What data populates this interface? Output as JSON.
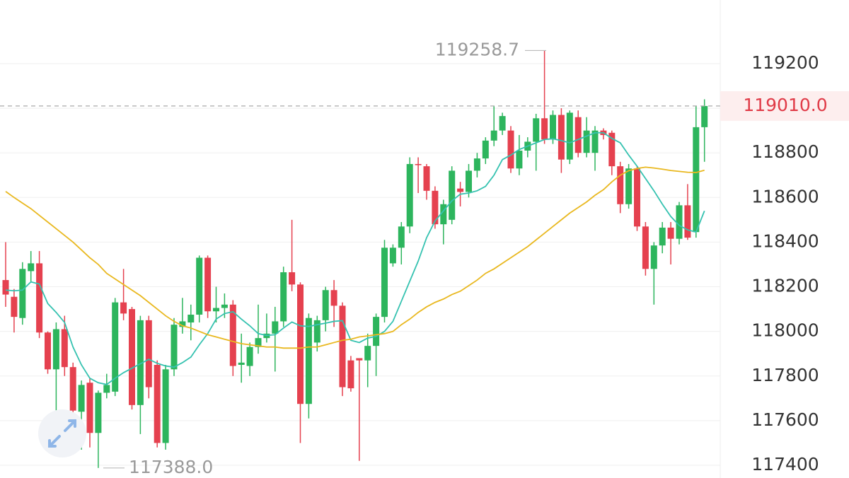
{
  "chart_data": {
    "type": "candlestick",
    "categories": [
      null,
      null,
      null,
      null,
      null,
      null,
      null,
      null,
      null,
      null,
      null,
      null,
      null,
      null,
      null,
      null,
      null,
      null,
      null,
      null,
      null,
      null,
      null,
      null,
      null,
      null,
      null,
      null,
      null,
      null,
      null,
      null,
      null,
      null,
      null,
      null,
      null,
      null,
      null,
      null,
      null,
      null,
      null,
      null,
      null,
      null,
      null,
      null,
      null,
      null,
      null,
      null,
      null,
      null,
      null,
      null,
      null,
      null,
      null,
      null,
      null,
      null,
      null,
      null,
      null,
      null,
      null,
      null,
      null,
      null,
      null,
      null,
      null,
      null,
      null,
      null,
      null,
      null,
      null,
      null,
      null,
      null,
      null,
      null
    ],
    "open": [
      118230,
      118155,
      118060,
      118270,
      118305,
      117995,
      117830,
      118010,
      117840,
      117640,
      117770,
      117545,
      117725,
      117730,
      118130,
      118100,
      117670,
      118050,
      117850,
      117500,
      117830,
      118020,
      118040,
      118075,
      118330,
      118090,
      118105,
      118120,
      117850,
      117845,
      117930,
      117970,
      117990,
      118045,
      118265,
      118210,
      117675,
      117950,
      118050,
      118185,
      118115,
      117870,
      117880,
      117870,
      117935,
      118065,
      118305,
      118375,
      118470,
      118750,
      118740,
      118630,
      118480,
      118500,
      118640,
      118625,
      118720,
      118775,
      118855,
      118900,
      118900,
      118730,
      118810,
      118850,
      118955,
      118860,
      118970,
      118770,
      118960,
      118800,
      118800,
      118900,
      118890,
      118740,
      118570,
      118730,
      118470,
      118280,
      118385,
      118465,
      118415,
      118565,
      118445,
      118915
    ],
    "high": [
      118400,
      118190,
      118310,
      118360,
      118360,
      118000,
      118040,
      118070,
      117860,
      117780,
      117790,
      117735,
      117810,
      118150,
      118280,
      118110,
      118070,
      118070,
      117870,
      117850,
      118060,
      118150,
      118120,
      118340,
      118340,
      118200,
      118170,
      118140,
      117990,
      117950,
      118120,
      118080,
      118110,
      118290,
      118500,
      118220,
      118080,
      118070,
      118200,
      118230,
      118130,
      117890,
      117880,
      117990,
      118080,
      118410,
      118390,
      118490,
      118780,
      118780,
      118750,
      118650,
      118590,
      118740,
      118670,
      118750,
      118800,
      118870,
      119010,
      118980,
      118920,
      118880,
      118870,
      118975,
      119258.7,
      118990,
      119000,
      118990,
      118990,
      118960,
      118920,
      118910,
      118900,
      118760,
      118750,
      118740,
      118490,
      118400,
      118490,
      118490,
      118580,
      118660,
      119010,
      119040
    ],
    "low": [
      118110,
      117995,
      118030,
      118220,
      117970,
      117810,
      117610,
      117800,
      117620,
      117470,
      117480,
      117388,
      117700,
      117710,
      118050,
      117650,
      117540,
      117700,
      117480,
      117470,
      117800,
      117990,
      117960,
      118040,
      118060,
      118040,
      118060,
      117800,
      117770,
      117800,
      117900,
      117950,
      117820,
      118020,
      118180,
      117500,
      117610,
      117910,
      118000,
      118020,
      117710,
      117730,
      117420,
      117750,
      117800,
      118040,
      118290,
      118300,
      118440,
      118620,
      118590,
      118460,
      118390,
      118480,
      118560,
      118600,
      118690,
      118750,
      118830,
      118880,
      118710,
      118700,
      118780,
      118720,
      118840,
      118840,
      118710,
      118750,
      118780,
      118780,
      118720,
      118860,
      118700,
      118530,
      118550,
      118450,
      118250,
      118120,
      118350,
      118300,
      118390,
      118410,
      118420,
      118760
    ],
    "close": [
      118165,
      118065,
      118280,
      118305,
      117995,
      117830,
      118010,
      117840,
      117645,
      117760,
      117545,
      117725,
      117760,
      118130,
      118080,
      117670,
      118050,
      117750,
      117500,
      117830,
      118030,
      118045,
      118075,
      118330,
      118090,
      118105,
      118120,
      117845,
      117860,
      117930,
      117970,
      117990,
      118045,
      118265,
      118210,
      117675,
      118060,
      118050,
      118185,
      118115,
      117750,
      117745,
      117870,
      117935,
      118065,
      118375,
      118375,
      118470,
      118750,
      118745,
      118630,
      118480,
      118570,
      118720,
      118625,
      118720,
      118775,
      118855,
      118900,
      118965,
      118730,
      118810,
      118850,
      118955,
      118860,
      118970,
      118770,
      118980,
      118800,
      118900,
      118900,
      118880,
      118740,
      118570,
      118730,
      118470,
      118280,
      118385,
      118465,
      118415,
      118565,
      118420,
      118915,
      119010
    ],
    "up_color": "#2db55d",
    "down_color": "#e5414f",
    "ma_lines": [
      {
        "color": "#35c2b0",
        "values": [
          118185,
          118182,
          118185,
          118222,
          118212,
          118125,
          118085,
          118040,
          117930,
          117850,
          117790,
          117770,
          117762,
          117790,
          117815,
          117835,
          117855,
          117875,
          117857,
          117845,
          117840,
          117860,
          117885,
          117940,
          117990,
          118055,
          118080,
          118088,
          118055,
          118025,
          117990,
          117982,
          117985,
          118015,
          118042,
          118025,
          118022,
          118030,
          118037,
          118045,
          118048,
          117960,
          117950,
          117970,
          117978,
          118000,
          118045,
          118135,
          118225,
          118315,
          118420,
          118495,
          118540,
          118585,
          118615,
          118620,
          118630,
          118650,
          118700,
          118770,
          118790,
          118815,
          118830,
          118845,
          118860,
          118863,
          118855,
          118845,
          118860,
          118875,
          118890,
          118890,
          118865,
          118845,
          118790,
          118740,
          118685,
          118630,
          118570,
          118515,
          118475,
          118455,
          118445,
          118540
        ]
      },
      {
        "color": "#e9b81f",
        "values": [
          118627,
          118600,
          118575,
          118550,
          118520,
          118490,
          118460,
          118430,
          118400,
          118365,
          118330,
          118300,
          118260,
          118235,
          118210,
          118185,
          118160,
          118130,
          118100,
          118070,
          118045,
          118025,
          118015,
          118000,
          117985,
          117975,
          117965,
          117955,
          117945,
          117940,
          117935,
          117930,
          117930,
          117925,
          117925,
          117925,
          117930,
          117930,
          117940,
          117950,
          117960,
          117965,
          117975,
          117980,
          117985,
          117990,
          118000,
          118030,
          118055,
          118085,
          118110,
          118130,
          118145,
          118165,
          118180,
          118205,
          118230,
          118260,
          118280,
          118305,
          118330,
          118355,
          118380,
          118410,
          118440,
          118470,
          118500,
          118530,
          118555,
          118580,
          118610,
          118635,
          118670,
          118700,
          118720,
          118730,
          118736,
          118732,
          118727,
          118721,
          118717,
          118713,
          118712,
          118722
        ]
      }
    ],
    "ylim": [
      117343,
      119485
    ],
    "yticks": [
      117400,
      117600,
      117800,
      118000,
      118200,
      118400,
      118600,
      118800,
      119000,
      119200
    ],
    "grid": true,
    "last_price": {
      "value": 119010,
      "label": "119010.0"
    },
    "annotations": [
      {
        "value": 119258.7,
        "label": "119258.7"
      },
      {
        "value": 117388,
        "label": "117388.0"
      }
    ]
  }
}
